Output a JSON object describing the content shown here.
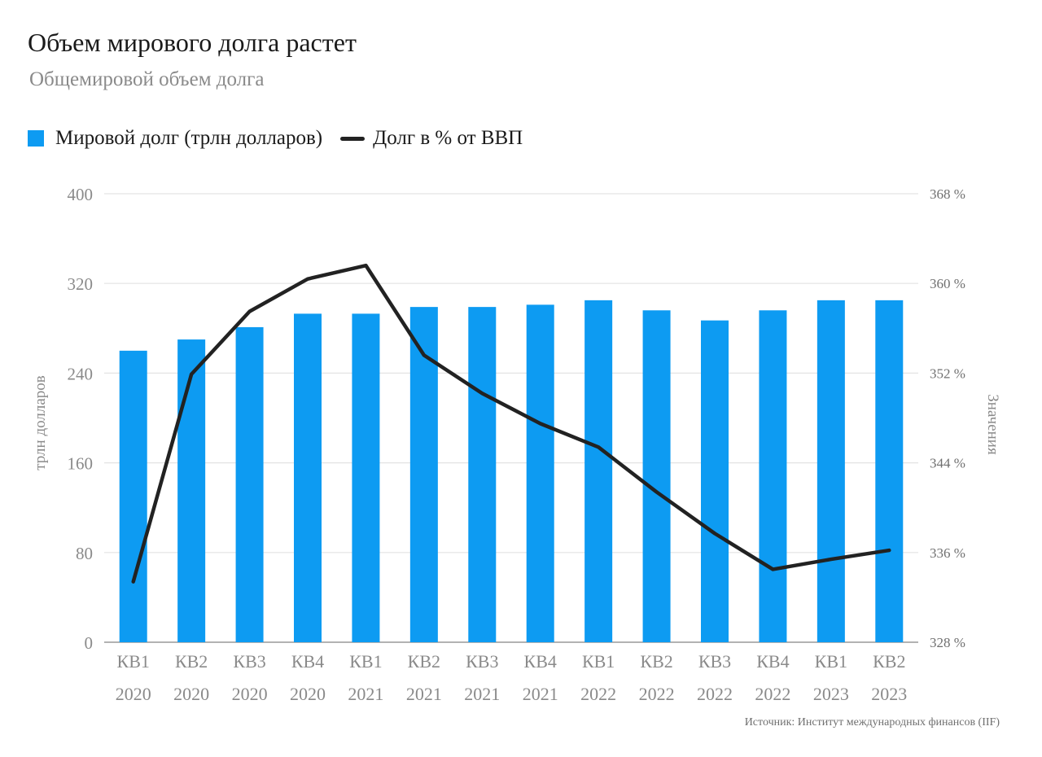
{
  "chart_data": {
    "type": "bar",
    "title": "Объем мирового долга растет",
    "subtitle": "Общемировой объем долга",
    "categories": [
      [
        "КВ1",
        "2020"
      ],
      [
        "КВ2",
        "2020"
      ],
      [
        "КВ3",
        "2020"
      ],
      [
        "КВ4",
        "2020"
      ],
      [
        "КВ1",
        "2021"
      ],
      [
        "КВ2",
        "2021"
      ],
      [
        "КВ3",
        "2021"
      ],
      [
        "КВ4",
        "2021"
      ],
      [
        "КВ1",
        "2022"
      ],
      [
        "КВ2",
        "2022"
      ],
      [
        "КВ3",
        "2022"
      ],
      [
        "КВ4",
        "2022"
      ],
      [
        "КВ1",
        "2023"
      ],
      [
        "КВ2",
        "2023"
      ]
    ],
    "series": [
      {
        "name": "Мировой долг (трлн долларов)",
        "type": "bar",
        "axis": "left",
        "color": "#0d9bf2",
        "values": [
          260,
          270,
          281,
          293,
          293,
          299,
          299,
          301,
          305,
          296,
          287,
          296,
          305,
          305
        ]
      },
      {
        "name": "Долг в % от ВВП",
        "type": "line",
        "axis": "right",
        "color": "#222222",
        "values": [
          333.4,
          351.9,
          357.5,
          360.4,
          361.6,
          353.6,
          350.2,
          347.5,
          345.4,
          341.4,
          337.7,
          334.5,
          335.4,
          336.2
        ]
      }
    ],
    "y_left": {
      "label": "трлн долларов",
      "ylim": [
        0,
        400
      ],
      "ticks": [
        0,
        80,
        160,
        240,
        320,
        400
      ]
    },
    "y_right": {
      "label": "Значения",
      "ylim": [
        328,
        368
      ],
      "ticks": [
        "328 %",
        "336 %",
        "344 %",
        "352 %",
        "360 %",
        "368 %"
      ]
    },
    "grid": true,
    "legend_position": "top-left",
    "source": "Источник: Институт международных финансов (IIF)"
  }
}
